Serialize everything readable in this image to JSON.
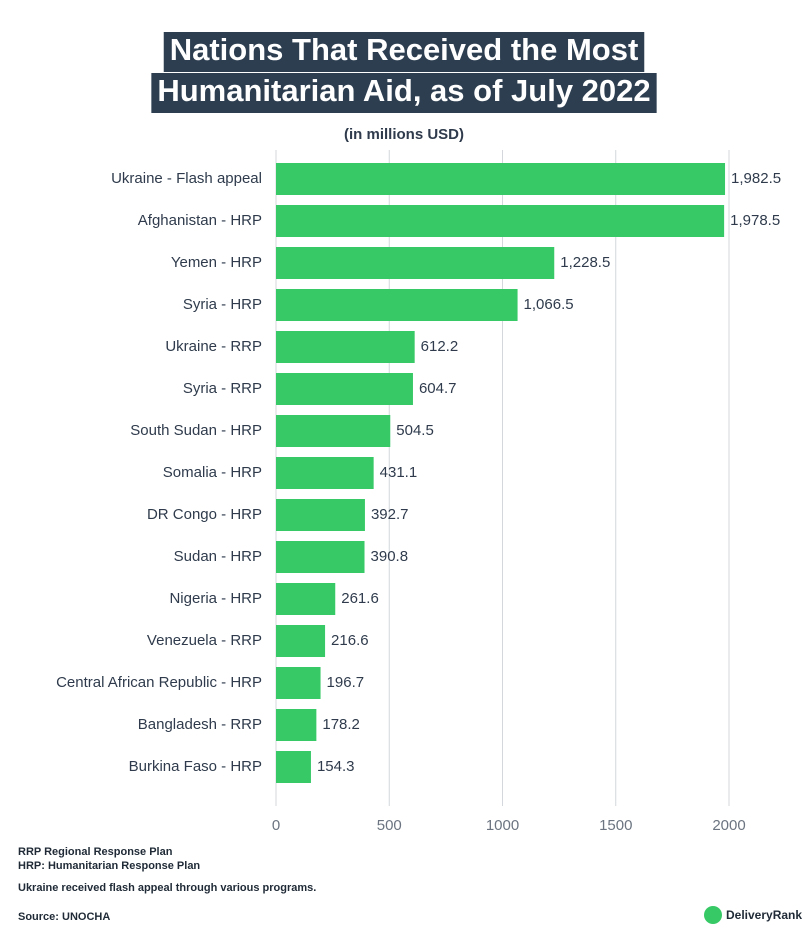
{
  "chart_data": {
    "type": "bar",
    "orientation": "horizontal",
    "title": [
      "Nations That Received the Most",
      "Humanitarian Aid, as of July 2022"
    ],
    "subtitle": "(in millions USD)",
    "categories": [
      "Ukraine  - Flash appeal",
      "Afghanistan - HRP",
      "Yemen - HRP",
      "Syria - HRP",
      "Ukraine - RRP",
      "Syria - RRP",
      "South Sudan - HRP",
      "Somalia - HRP",
      "DR Congo - HRP",
      "Sudan - HRP",
      "Nigeria - HRP",
      "Venezuela - RRP",
      "Central African Republic - HRP",
      "Bangladesh - RRP",
      "Burkina Faso - HRP"
    ],
    "values": [
      1982.5,
      1978.5,
      1228.5,
      1066.5,
      612.2,
      604.7,
      504.5,
      431.1,
      392.7,
      390.8,
      261.6,
      216.6,
      196.7,
      178.2,
      154.3
    ],
    "value_labels": [
      "1,982.5",
      "1,978.5",
      "1,228.5",
      "1,066.5",
      "612.2",
      "604.7",
      "504.5",
      "431.1",
      "392.7",
      "390.8",
      "261.6",
      "216.6",
      "196.7",
      "178.2",
      "154.3"
    ],
    "color": "#37c966",
    "xlim": [
      0,
      2000
    ],
    "xticks": [
      0,
      500,
      1000,
      1500,
      2000
    ],
    "grid": true,
    "notes": [
      "RRP Regional Response Plan",
      "HRP: Humanitarian Response Plan",
      "Ukraine received flash appeal through various programs."
    ],
    "source": "Source: UNOCHA",
    "brand": "DeliveryRank"
  }
}
